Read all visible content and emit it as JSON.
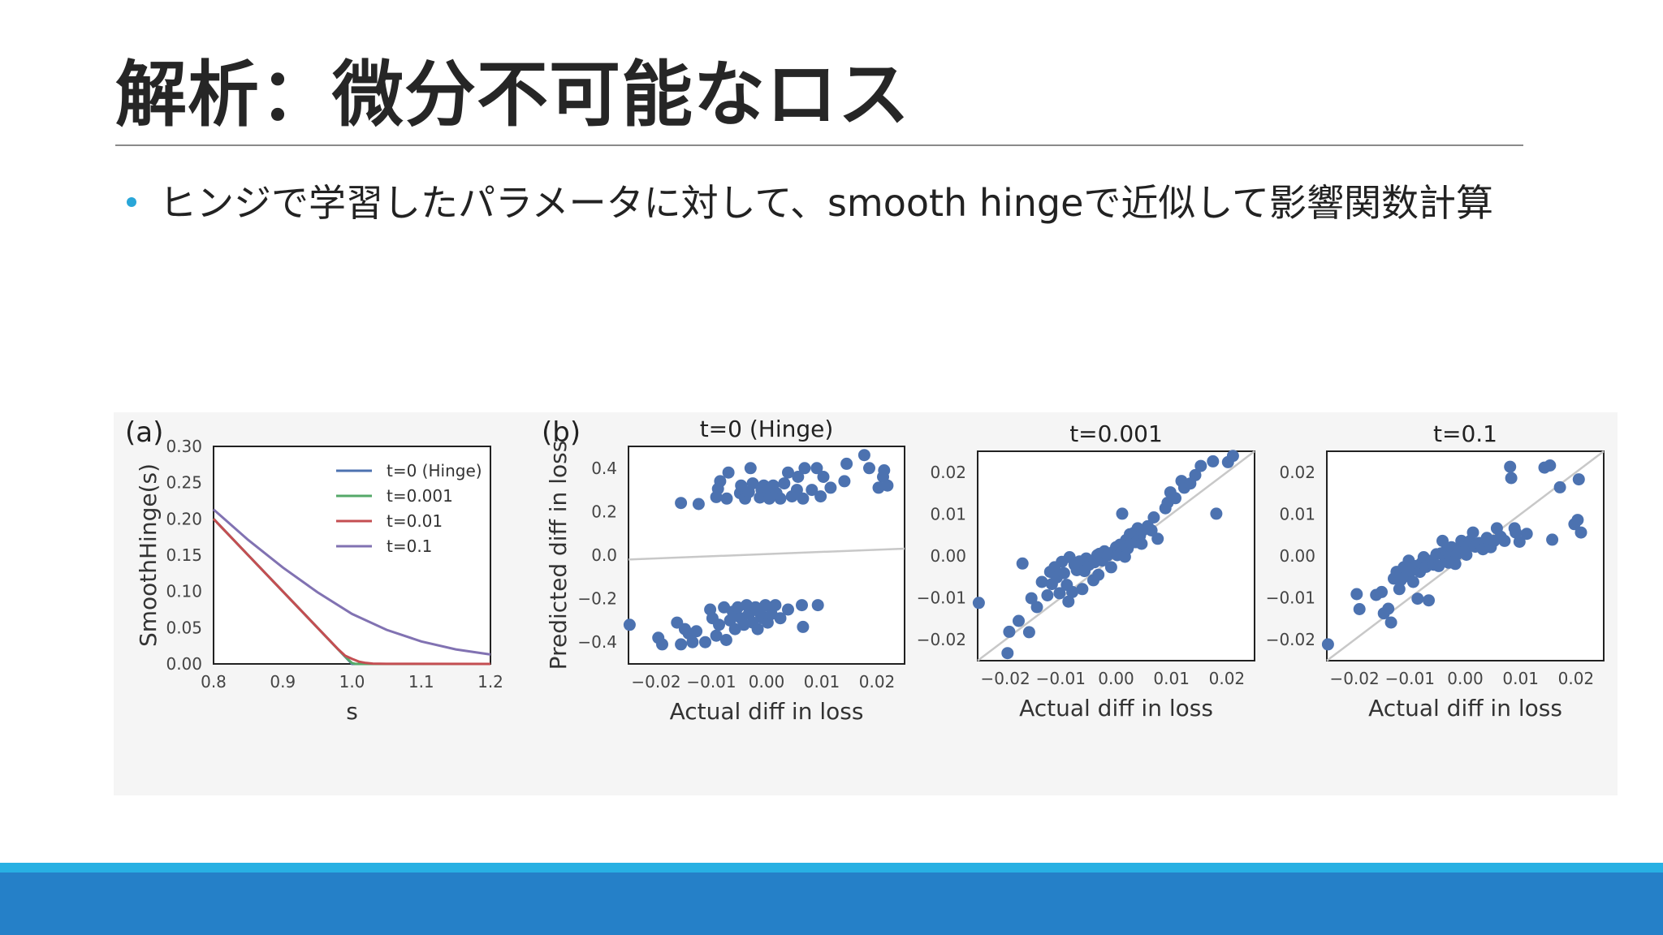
{
  "slide": {
    "title": "解析：微分不可能なロス",
    "bullet": "ヒンジで学習したパラメータに対して、smooth hingeで近似して影響関数計算"
  },
  "colors": {
    "title": "#262626",
    "rule": "#8a8a8a",
    "bullet_dot": "#29a6d8",
    "footer_light": "#28b0e3",
    "footer_dark": "#2580c8",
    "scatter_point": "#4c72b0",
    "diagonal": "#c8c8c8"
  },
  "chart_data": [
    {
      "panel_label": "(a)",
      "type": "line",
      "title": "",
      "xlabel": "s",
      "ylabel": "SmoothHinge(s)",
      "xlim": [
        0.8,
        1.2
      ],
      "ylim": [
        0.0,
        0.3
      ],
      "xticks": [
        "0.8",
        "0.9",
        "1.0",
        "1.1",
        "1.2"
      ],
      "yticks": [
        "0.00",
        "0.05",
        "0.10",
        "0.15",
        "0.20",
        "0.25",
        "0.30"
      ],
      "legend_position": "top-right",
      "series": [
        {
          "name": "t=0 (Hinge)",
          "color": "#4c72b0",
          "x": [
            0.8,
            0.85,
            0.9,
            0.95,
            1.0,
            1.05,
            1.1,
            1.15,
            1.2
          ],
          "y": [
            0.2,
            0.15,
            0.1,
            0.05,
            0.0,
            0.0,
            0.0,
            0.0,
            0.0
          ]
        },
        {
          "name": "t=0.001",
          "color": "#55a868",
          "x": [
            0.8,
            0.85,
            0.9,
            0.95,
            0.98,
            0.995,
            1.0,
            1.005,
            1.01,
            1.02,
            1.2
          ],
          "y": [
            0.2,
            0.15,
            0.1,
            0.05,
            0.02,
            0.0057,
            0.0011,
            0.0,
            0.0,
            0.0,
            0.0
          ]
        },
        {
          "name": "t=0.01",
          "color": "#c44e52",
          "x": [
            0.8,
            0.85,
            0.9,
            0.95,
            0.98,
            0.99,
            1.0,
            1.01,
            1.02,
            1.03,
            1.05,
            1.2
          ],
          "y": [
            0.2,
            0.15,
            0.1,
            0.05,
            0.0203,
            0.0113,
            0.0069,
            0.0031,
            0.0013,
            0.0005,
            0.0001,
            0.0
          ]
        },
        {
          "name": "t=0.1",
          "color": "#8172b2",
          "x": [
            0.8,
            0.85,
            0.9,
            0.95,
            1.0,
            1.05,
            1.1,
            1.15,
            1.2
          ],
          "y": [
            0.213,
            0.171,
            0.133,
            0.099,
            0.069,
            0.047,
            0.031,
            0.02,
            0.013
          ]
        }
      ]
    },
    {
      "panel_label": "(b)",
      "type": "scatter",
      "title": "t=0 (Hinge)",
      "xlabel": "Actual diff in loss",
      "ylabel": "Predicted diff in loss",
      "xlim": [
        -0.025,
        0.025
      ],
      "ylim": [
        -0.5,
        0.5
      ],
      "xticks": [
        "−0.02",
        "−0.01",
        "0.00",
        "0.01",
        "0.02"
      ],
      "yticks": [
        "−0.4",
        "−0.2",
        "0.0",
        "0.2",
        "0.4"
      ],
      "reference_line": {
        "x": [
          -0.025,
          0.025
        ],
        "y": [
          -0.02,
          0.03
        ]
      },
      "points": [
        [
          -0.0155,
          0.24
        ],
        [
          -0.0123,
          0.235
        ],
        [
          -0.0091,
          0.267
        ],
        [
          -0.0088,
          0.305
        ],
        [
          -0.0084,
          0.34
        ],
        [
          -0.0072,
          0.26
        ],
        [
          -0.0069,
          0.38
        ],
        [
          -0.0048,
          0.285
        ],
        [
          -0.0046,
          0.32
        ],
        [
          -0.0039,
          0.26
        ],
        [
          -0.0032,
          0.29
        ],
        [
          -0.0029,
          0.4
        ],
        [
          -0.0025,
          0.33
        ],
        [
          -0.0012,
          0.265
        ],
        [
          -0.0009,
          0.3
        ],
        [
          -0.0005,
          0.32
        ],
        [
          0.0,
          0.27
        ],
        [
          0.0002,
          0.3
        ],
        [
          0.0005,
          0.26
        ],
        [
          0.0012,
          0.32
        ],
        [
          0.0018,
          0.285
        ],
        [
          0.0025,
          0.26
        ],
        [
          0.0032,
          0.33
        ],
        [
          0.0039,
          0.38
        ],
        [
          0.0046,
          0.27
        ],
        [
          0.0055,
          0.3
        ],
        [
          0.0057,
          0.36
        ],
        [
          0.0066,
          0.26
        ],
        [
          0.0069,
          0.4
        ],
        [
          0.0082,
          0.3
        ],
        [
          0.0091,
          0.4
        ],
        [
          0.0098,
          0.27
        ],
        [
          0.0103,
          0.36
        ],
        [
          0.0116,
          0.31
        ],
        [
          0.0141,
          0.34
        ],
        [
          0.0145,
          0.42
        ],
        [
          0.0177,
          0.46
        ],
        [
          0.0186,
          0.4
        ],
        [
          0.0203,
          0.31
        ],
        [
          0.0211,
          0.36
        ],
        [
          0.0219,
          0.32
        ],
        [
          0.0213,
          0.39
        ],
        [
          -0.0248,
          -0.32
        ],
        [
          -0.0196,
          -0.38
        ],
        [
          -0.0189,
          -0.41
        ],
        [
          -0.0162,
          -0.31
        ],
        [
          -0.0155,
          -0.41
        ],
        [
          -0.0148,
          -0.34
        ],
        [
          -0.0141,
          -0.36
        ],
        [
          -0.0134,
          -0.4
        ],
        [
          -0.0127,
          -0.35
        ],
        [
          -0.0111,
          -0.4
        ],
        [
          -0.0102,
          -0.25
        ],
        [
          -0.0098,
          -0.29
        ],
        [
          -0.0091,
          -0.37
        ],
        [
          -0.0086,
          -0.32
        ],
        [
          -0.0077,
          -0.24
        ],
        [
          -0.0073,
          -0.39
        ],
        [
          -0.0066,
          -0.3
        ],
        [
          -0.0061,
          -0.26
        ],
        [
          -0.0057,
          -0.34
        ],
        [
          -0.0052,
          -0.24
        ],
        [
          -0.0046,
          -0.29
        ],
        [
          -0.0041,
          -0.32
        ],
        [
          -0.0036,
          -0.23
        ],
        [
          -0.0032,
          -0.27
        ],
        [
          -0.0025,
          -0.31
        ],
        [
          -0.002,
          -0.24
        ],
        [
          -0.0016,
          -0.34
        ],
        [
          -0.0011,
          -0.27
        ],
        [
          -0.0007,
          -0.29
        ],
        [
          -0.0002,
          -0.23
        ],
        [
          0.0002,
          -0.31
        ],
        [
          0.0009,
          -0.27
        ],
        [
          0.0016,
          -0.23
        ],
        [
          0.0025,
          -0.29
        ],
        [
          0.0039,
          -0.25
        ],
        [
          0.0066,
          -0.33
        ],
        [
          0.0064,
          -0.23
        ],
        [
          0.0093,
          -0.23
        ]
      ]
    },
    {
      "panel_label": "",
      "type": "scatter",
      "title": "t=0.001",
      "xlabel": "Actual diff in loss",
      "ylabel": "",
      "xlim": [
        -0.025,
        0.025
      ],
      "ylim": [
        -0.025,
        0.025
      ],
      "xticks": [
        "−0.02",
        "−0.01",
        "0.00",
        "0.01",
        "0.02"
      ],
      "yticks": [
        "−0.02",
        "−0.01",
        "0.00",
        "0.01",
        "0.02"
      ],
      "reference_line": {
        "x": [
          -0.025,
          0.025
        ],
        "y": [
          -0.025,
          0.025
        ]
      },
      "points": [
        [
          -0.0248,
          -0.0112
        ],
        [
          -0.0196,
          -0.0232
        ],
        [
          -0.0193,
          -0.0181
        ],
        [
          -0.0176,
          -0.0155
        ],
        [
          -0.0169,
          -0.0018
        ],
        [
          -0.0153,
          -0.0101
        ],
        [
          -0.0157,
          -0.0182
        ],
        [
          -0.0143,
          -0.0122
        ],
        [
          -0.0134,
          -0.0062
        ],
        [
          -0.0124,
          -0.0094
        ],
        [
          -0.0119,
          -0.0038
        ],
        [
          -0.0116,
          -0.0067
        ],
        [
          -0.0111,
          -0.0027
        ],
        [
          -0.0107,
          -0.0051
        ],
        [
          -0.0102,
          -0.0089
        ],
        [
          -0.0098,
          -0.0014
        ],
        [
          -0.0094,
          -0.0041
        ],
        [
          -0.0089,
          -0.0069
        ],
        [
          -0.0086,
          -0.0109
        ],
        [
          -0.0084,
          -0.0003
        ],
        [
          -0.0079,
          -0.0086
        ],
        [
          -0.0075,
          -0.0021
        ],
        [
          -0.0071,
          -0.0034
        ],
        [
          -0.0066,
          -0.0013
        ],
        [
          -0.0061,
          -0.0079
        ],
        [
          -0.0057,
          -0.0036
        ],
        [
          -0.0054,
          -0.0006
        ],
        [
          -0.0049,
          -0.0021
        ],
        [
          -0.0046,
          -0.0014
        ],
        [
          -0.0041,
          -0.0058
        ],
        [
          -0.0039,
          -0.0015
        ],
        [
          -0.0034,
          0.0002
        ],
        [
          -0.0032,
          -0.0045
        ],
        [
          -0.003,
          0.0005
        ],
        [
          -0.0025,
          -0.0011
        ],
        [
          -0.0021,
          0.0011
        ],
        [
          -0.0016,
          0.0001
        ],
        [
          -0.0009,
          -0.0027
        ],
        [
          -0.0004,
          0.0011
        ],
        [
          0.0,
          0.0021
        ],
        [
          0.0002,
          0.0002
        ],
        [
          0.0005,
          0.0013
        ],
        [
          0.0007,
          0.0027
        ],
        [
          0.0009,
          0.0008
        ],
        [
          0.0011,
          0.0101
        ],
        [
          0.0014,
          0.0012
        ],
        [
          0.0016,
          -0.0002
        ],
        [
          0.0018,
          0.0038
        ],
        [
          0.0021,
          0.0018
        ],
        [
          0.0025,
          0.0052
        ],
        [
          0.0027,
          0.0031
        ],
        [
          0.0032,
          0.0055
        ],
        [
          0.0036,
          0.0033
        ],
        [
          0.0039,
          0.0066
        ],
        [
          0.0043,
          0.0048
        ],
        [
          0.0046,
          0.0029
        ],
        [
          0.0048,
          0.0061
        ],
        [
          0.0057,
          0.0071
        ],
        [
          0.0064,
          0.0061
        ],
        [
          0.0068,
          0.0092
        ],
        [
          0.0075,
          0.0041
        ],
        [
          0.0089,
          0.0114
        ],
        [
          0.0093,
          0.0127
        ],
        [
          0.0098,
          0.0152
        ],
        [
          0.0107,
          0.0138
        ],
        [
          0.0118,
          0.0179
        ],
        [
          0.0123,
          0.0163
        ],
        [
          0.0134,
          0.0173
        ],
        [
          0.0143,
          0.0193
        ],
        [
          0.0153,
          0.0215
        ],
        [
          0.0175,
          0.0226
        ],
        [
          0.0181,
          0.0101
        ],
        [
          0.0202,
          0.0224
        ],
        [
          0.0211,
          0.0239
        ]
      ]
    },
    {
      "panel_label": "",
      "type": "scatter",
      "title": "t=0.1",
      "xlabel": "Actual diff in loss",
      "ylabel": "",
      "xlim": [
        -0.025,
        0.025
      ],
      "ylim": [
        -0.025,
        0.025
      ],
      "xticks": [
        "−0.02",
        "−0.01",
        "0.00",
        "0.01",
        "0.02"
      ],
      "yticks": [
        "−0.02",
        "−0.01",
        "0.00",
        "0.01",
        "0.02"
      ],
      "reference_line": {
        "x": [
          -0.025,
          0.025
        ],
        "y": [
          -0.025,
          0.025
        ]
      },
      "points": [
        [
          -0.0248,
          -0.0211
        ],
        [
          -0.0196,
          -0.0091
        ],
        [
          -0.0191,
          -0.0127
        ],
        [
          -0.0161,
          -0.0093
        ],
        [
          -0.0151,
          -0.0086
        ],
        [
          -0.0147,
          -0.0137
        ],
        [
          -0.0139,
          -0.0126
        ],
        [
          -0.0134,
          -0.0159
        ],
        [
          -0.0129,
          -0.0054
        ],
        [
          -0.0124,
          -0.0038
        ],
        [
          -0.0119,
          -0.0079
        ],
        [
          -0.0116,
          -0.0057
        ],
        [
          -0.0111,
          -0.0027
        ],
        [
          -0.0107,
          -0.0048
        ],
        [
          -0.0102,
          -0.0011
        ],
        [
          -0.0098,
          -0.0036
        ],
        [
          -0.0094,
          -0.0062
        ],
        [
          -0.0089,
          -0.0024
        ],
        [
          -0.0086,
          -0.0102
        ],
        [
          -0.0082,
          -0.0038
        ],
        [
          -0.0079,
          -0.0017
        ],
        [
          -0.0075,
          -0.0003
        ],
        [
          -0.0071,
          -0.0026
        ],
        [
          -0.0066,
          -0.0106
        ],
        [
          -0.0061,
          -0.0011
        ],
        [
          -0.0057,
          -0.0021
        ],
        [
          -0.0052,
          0.0004
        ],
        [
          -0.0048,
          -0.0024
        ],
        [
          -0.0044,
          0.0006
        ],
        [
          -0.0041,
          0.0036
        ],
        [
          -0.0037,
          -0.0002
        ],
        [
          -0.0034,
          0.0014
        ],
        [
          -0.003,
          -0.0016
        ],
        [
          -0.0027,
          0.0001
        ],
        [
          -0.0025,
          0.0021
        ],
        [
          -0.0021,
          0.0011
        ],
        [
          -0.0018,
          -0.0019
        ],
        [
          -0.0016,
          0.0003
        ],
        [
          -0.0011,
          0.0013
        ],
        [
          -0.0007,
          0.0036
        ],
        [
          -0.0005,
          0.0017
        ],
        [
          0.0,
          0.0013
        ],
        [
          0.0002,
          0.0003
        ],
        [
          0.0005,
          0.0024
        ],
        [
          0.0009,
          0.0036
        ],
        [
          0.0014,
          0.0056
        ],
        [
          0.0018,
          0.0022
        ],
        [
          0.0025,
          0.0031
        ],
        [
          0.0032,
          0.0016
        ],
        [
          0.0039,
          0.0043
        ],
        [
          0.0046,
          0.0021
        ],
        [
          0.0052,
          0.0036
        ],
        [
          0.0057,
          0.0066
        ],
        [
          0.0064,
          0.0046
        ],
        [
          0.0071,
          0.0036
        ],
        [
          0.0083,
          0.0186
        ],
        [
          0.0089,
          0.0066
        ],
        [
          0.0091,
          0.0056
        ],
        [
          0.0098,
          0.0034
        ],
        [
          0.0111,
          0.0053
        ],
        [
          0.0143,
          0.0211
        ],
        [
          0.0153,
          0.0216
        ],
        [
          0.0157,
          0.0039
        ],
        [
          0.0171,
          0.0164
        ],
        [
          0.0197,
          0.0076
        ],
        [
          0.0205,
          0.0183
        ],
        [
          0.0209,
          0.0056
        ],
        [
          0.0081,
          0.0213
        ],
        [
          0.0203,
          0.0086
        ]
      ]
    }
  ]
}
